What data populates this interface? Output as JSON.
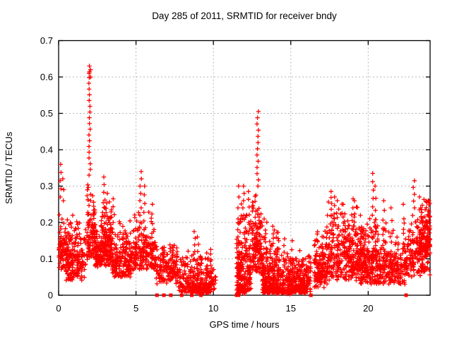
{
  "chart_data": {
    "type": "scatter",
    "title": "Day 285 of 2011, SRMTID for receiver bndy",
    "xlabel": "GPS time / hours",
    "ylabel": "SRMTID / TECUs",
    "xlim": [
      0,
      24
    ],
    "ylim": [
      0,
      0.7
    ],
    "xticks": [
      {
        "v": 0,
        "label": "0"
      },
      {
        "v": 5,
        "label": "5"
      },
      {
        "v": 10,
        "label": "10"
      },
      {
        "v": 15,
        "label": "15"
      },
      {
        "v": 20,
        "label": "20"
      }
    ],
    "yticks": [
      {
        "v": 0,
        "label": "0"
      },
      {
        "v": 0.1,
        "label": "0.1"
      },
      {
        "v": 0.2,
        "label": "0.2"
      },
      {
        "v": 0.3,
        "label": "0.3"
      },
      {
        "v": 0.4,
        "label": "0.4"
      },
      {
        "v": 0.5,
        "label": "0.5"
      },
      {
        "v": 0.6,
        "label": "0.6"
      },
      {
        "v": 0.7,
        "label": "0.7"
      }
    ],
    "grid": true,
    "legend": "none",
    "marker": "plus",
    "marker_color": "#ff0000",
    "grid_color": "#b4b4b4",
    "axis_color": "#000000",
    "background": "#ffffff",
    "series_model": {
      "comment": "Density envelope read from the plot: clusters {x0,x1,n,ymin,ymax,skew}, vertical spike streaks {x,y0,y1,n}, and filled squares at y=0.",
      "seed": 285,
      "jitter_x": 0.05,
      "clusters": [
        {
          "x0": 0.02,
          "x1": 0.45,
          "n": 70,
          "ymin": 0.07,
          "ymax": 0.26,
          "skew": 1.8
        },
        {
          "x0": 0.45,
          "x1": 1.75,
          "n": 200,
          "ymin": 0.04,
          "ymax": 0.23,
          "skew": 1.7
        },
        {
          "x0": 1.8,
          "x1": 2.35,
          "n": 110,
          "ymin": 0.09,
          "ymax": 0.32,
          "skew": 1.6
        },
        {
          "x0": 2.35,
          "x1": 2.72,
          "n": 60,
          "ymin": 0.07,
          "ymax": 0.2,
          "skew": 1.7
        },
        {
          "x0": 2.72,
          "x1": 3.45,
          "n": 160,
          "ymin": 0.08,
          "ymax": 0.27,
          "skew": 1.6
        },
        {
          "x0": 3.45,
          "x1": 4.85,
          "n": 200,
          "ymin": 0.05,
          "ymax": 0.22,
          "skew": 1.8
        },
        {
          "x0": 4.85,
          "x1": 6.25,
          "n": 180,
          "ymin": 0.07,
          "ymax": 0.24,
          "skew": 1.7
        },
        {
          "x0": 6.25,
          "x1": 7.7,
          "n": 150,
          "ymin": 0.03,
          "ymax": 0.16,
          "skew": 1.6
        },
        {
          "x0": 7.7,
          "x1": 9.85,
          "n": 240,
          "ymin": 0.005,
          "ymax": 0.14,
          "skew": 1.9
        },
        {
          "x0": 8.5,
          "x1": 9.75,
          "n": 60,
          "ymin": 0.002,
          "ymax": 0.03,
          "skew": 1.0
        },
        {
          "x0": 9.85,
          "x1": 10.15,
          "n": 25,
          "ymin": 0.01,
          "ymax": 0.09,
          "skew": 1.5
        },
        {
          "x0": 11.5,
          "x1": 12.45,
          "n": 200,
          "ymin": 0.005,
          "ymax": 0.26,
          "skew": 2.0
        },
        {
          "x0": 11.5,
          "x1": 12.1,
          "n": 40,
          "ymin": 0.002,
          "ymax": 0.03,
          "skew": 1.0
        },
        {
          "x0": 12.5,
          "x1": 13.15,
          "n": 150,
          "ymin": 0.06,
          "ymax": 0.3,
          "skew": 1.7
        },
        {
          "x0": 13.15,
          "x1": 14.25,
          "n": 240,
          "ymin": 0.005,
          "ymax": 0.21,
          "skew": 2.0
        },
        {
          "x0": 13.2,
          "x1": 14.2,
          "n": 50,
          "ymin": 0.002,
          "ymax": 0.025,
          "skew": 1.0
        },
        {
          "x0": 14.25,
          "x1": 16.3,
          "n": 300,
          "ymin": 0.005,
          "ymax": 0.13,
          "skew": 1.8
        },
        {
          "x0": 14.4,
          "x1": 15.9,
          "n": 70,
          "ymin": 0.002,
          "ymax": 0.025,
          "skew": 1.0
        },
        {
          "x0": 16.5,
          "x1": 17.35,
          "n": 150,
          "ymin": 0.02,
          "ymax": 0.2,
          "skew": 1.7
        },
        {
          "x0": 17.35,
          "x1": 19.35,
          "n": 300,
          "ymin": 0.04,
          "ymax": 0.27,
          "skew": 1.7
        },
        {
          "x0": 19.35,
          "x1": 20.65,
          "n": 240,
          "ymin": 0.03,
          "ymax": 0.24,
          "skew": 1.7
        },
        {
          "x0": 20.65,
          "x1": 22.55,
          "n": 230,
          "ymin": 0.03,
          "ymax": 0.21,
          "skew": 1.8
        },
        {
          "x0": 22.55,
          "x1": 24.0,
          "n": 190,
          "ymin": 0.05,
          "ymax": 0.25,
          "skew": 1.6
        },
        {
          "x0": 23.35,
          "x1": 24.0,
          "n": 80,
          "ymin": 0.1,
          "ymax": 0.28,
          "skew": 1.2
        }
      ],
      "streaks": [
        {
          "x": 0.12,
          "y0": 0.27,
          "y1": 0.36,
          "n": 5
        },
        {
          "x": 0.3,
          "y0": 0.26,
          "y1": 0.32,
          "n": 3
        },
        {
          "x": 2.0,
          "y0": 0.33,
          "y1": 0.63,
          "n": 20
        },
        {
          "x": 2.02,
          "y0": 0.6,
          "y1": 0.62,
          "n": 3
        },
        {
          "x": 2.95,
          "y0": 0.22,
          "y1": 0.325,
          "n": 6
        },
        {
          "x": 3.1,
          "y0": 0.2,
          "y1": 0.28,
          "n": 4
        },
        {
          "x": 3.55,
          "y0": 0.2,
          "y1": 0.265,
          "n": 4
        },
        {
          "x": 5.3,
          "y0": 0.2,
          "y1": 0.34,
          "n": 8
        },
        {
          "x": 5.52,
          "y0": 0.18,
          "y1": 0.3,
          "n": 6
        },
        {
          "x": 6.05,
          "y0": 0.17,
          "y1": 0.25,
          "n": 4
        },
        {
          "x": 8.8,
          "y0": 0.12,
          "y1": 0.175,
          "n": 4
        },
        {
          "x": 9.0,
          "y0": 0.12,
          "y1": 0.16,
          "n": 3
        },
        {
          "x": 11.6,
          "y0": 0.03,
          "y1": 0.3,
          "n": 10
        },
        {
          "x": 11.95,
          "y0": 0.22,
          "y1": 0.3,
          "n": 5
        },
        {
          "x": 12.3,
          "y0": 0.2,
          "y1": 0.285,
          "n": 5
        },
        {
          "x": 12.86,
          "y0": 0.3,
          "y1": 0.505,
          "n": 13
        },
        {
          "x": 14.55,
          "y0": 0.1,
          "y1": 0.155,
          "n": 4
        },
        {
          "x": 15.1,
          "y0": 0.1,
          "y1": 0.15,
          "n": 3
        },
        {
          "x": 17.6,
          "y0": 0.22,
          "y1": 0.285,
          "n": 5
        },
        {
          "x": 17.8,
          "y0": 0.2,
          "y1": 0.27,
          "n": 4
        },
        {
          "x": 18.05,
          "y0": 0.19,
          "y1": 0.26,
          "n": 4
        },
        {
          "x": 18.4,
          "y0": 0.18,
          "y1": 0.25,
          "n": 3
        },
        {
          "x": 19.05,
          "y0": 0.19,
          "y1": 0.265,
          "n": 4
        },
        {
          "x": 20.3,
          "y0": 0.22,
          "y1": 0.335,
          "n": 6
        },
        {
          "x": 20.45,
          "y0": 0.2,
          "y1": 0.3,
          "n": 4
        },
        {
          "x": 21.0,
          "y0": 0.18,
          "y1": 0.26,
          "n": 4
        },
        {
          "x": 21.5,
          "y0": 0.17,
          "y1": 0.24,
          "n": 3
        },
        {
          "x": 22.3,
          "y0": 0.17,
          "y1": 0.25,
          "n": 3
        },
        {
          "x": 22.95,
          "y0": 0.24,
          "y1": 0.315,
          "n": 5
        },
        {
          "x": 23.3,
          "y0": 0.2,
          "y1": 0.27,
          "n": 3
        },
        {
          "x": 23.9,
          "y0": 0.18,
          "y1": 0.26,
          "n": 4
        }
      ],
      "zero_squares": [
        6.35,
        6.8,
        7.25,
        7.95,
        8.6,
        9.2,
        11.5,
        11.62,
        16.3,
        22.45
      ]
    }
  }
}
